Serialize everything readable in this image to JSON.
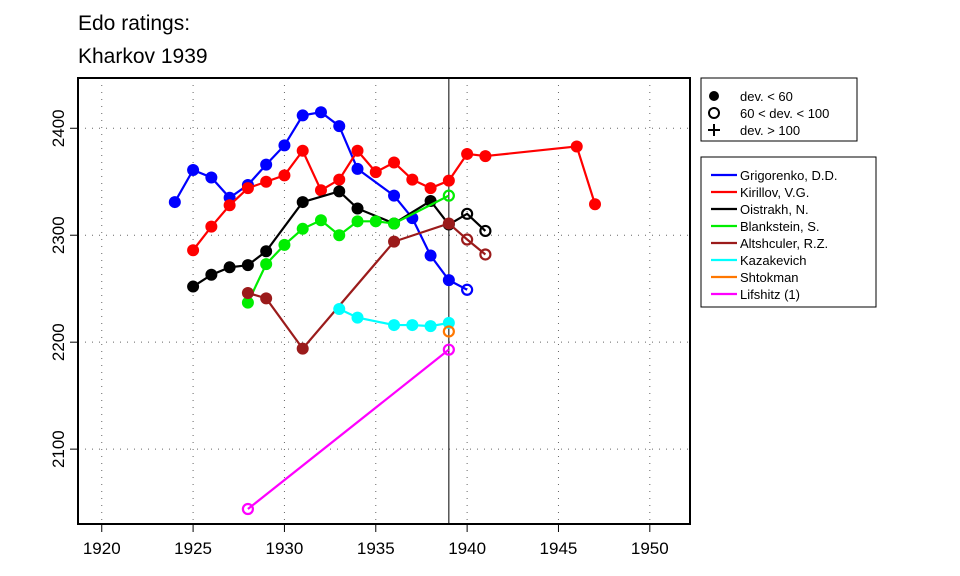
{
  "chart_data": {
    "type": "line",
    "title": [
      "Edo ratings:",
      "Kharkov 1939"
    ],
    "xlabel": "",
    "ylabel": "",
    "xlim": [
      1918.7,
      1952.2
    ],
    "ylim": [
      2030,
      2447
    ],
    "xticks": [
      1920,
      1925,
      1930,
      1935,
      1940,
      1945,
      1950
    ],
    "yticks": [
      2100,
      2200,
      2300,
      2400
    ],
    "grid": true,
    "reference_line_x": 1939,
    "marker_legend": [
      {
        "label": "dev. < 60",
        "marker": "filled"
      },
      {
        "label": "60 < dev. < 100",
        "marker": "open"
      },
      {
        "label": "dev. > 100",
        "marker": "plus"
      }
    ],
    "series": [
      {
        "name": "Grigorenko, D.D.",
        "color": "#0000ff",
        "points": [
          [
            1924,
            2331,
            0
          ],
          [
            1925,
            2361,
            0
          ],
          [
            1926,
            2354,
            0
          ],
          [
            1927,
            2335,
            0
          ],
          [
            1928,
            2347,
            0
          ],
          [
            1929,
            2366,
            0
          ],
          [
            1930,
            2384,
            0
          ],
          [
            1931,
            2412,
            0
          ],
          [
            1932,
            2415,
            0
          ],
          [
            1933,
            2402,
            0
          ],
          [
            1934,
            2362,
            0
          ],
          [
            1936,
            2337,
            0
          ],
          [
            1937,
            2316,
            0
          ],
          [
            1938,
            2281,
            0
          ],
          [
            1939,
            2258,
            0
          ],
          [
            1940,
            2249,
            1
          ]
        ]
      },
      {
        "name": "Kirillov, V.G.",
        "color": "#ff0000",
        "points": [
          [
            1925,
            2286,
            0
          ],
          [
            1926,
            2308,
            0
          ],
          [
            1927,
            2328,
            0
          ],
          [
            1928,
            2344,
            0
          ],
          [
            1929,
            2350,
            0
          ],
          [
            1930,
            2356,
            0
          ],
          [
            1931,
            2379,
            0
          ],
          [
            1932,
            2342,
            0
          ],
          [
            1933,
            2352,
            0
          ],
          [
            1934,
            2379,
            0
          ],
          [
            1935,
            2359,
            0
          ],
          [
            1936,
            2368,
            0
          ],
          [
            1937,
            2352,
            0
          ],
          [
            1938,
            2344,
            0
          ],
          [
            1939,
            2351,
            0
          ],
          [
            1940,
            2376,
            0
          ],
          [
            1941,
            2374,
            0
          ],
          [
            1946,
            2383,
            0
          ],
          [
            1947,
            2329,
            0
          ]
        ]
      },
      {
        "name": "Oistrakh, N.",
        "color": "#000000",
        "points": [
          [
            1925,
            2252,
            0
          ],
          [
            1926,
            2263,
            0
          ],
          [
            1927,
            2270,
            0
          ],
          [
            1928,
            2272,
            0
          ],
          [
            1929,
            2285,
            0
          ],
          [
            1931,
            2331,
            0
          ],
          [
            1933,
            2341,
            0
          ],
          [
            1934,
            2325,
            0
          ],
          [
            1936,
            2311,
            0
          ],
          [
            1938,
            2332,
            0
          ],
          [
            1939,
            2310,
            0
          ],
          [
            1940,
            2320,
            1
          ],
          [
            1941,
            2304,
            1
          ]
        ]
      },
      {
        "name": "Blankstein, S.",
        "color": "#00ee00",
        "points": [
          [
            1928,
            2237,
            0
          ],
          [
            1929,
            2273,
            0
          ],
          [
            1930,
            2291,
            0
          ],
          [
            1931,
            2306,
            0
          ],
          [
            1932,
            2314,
            0
          ],
          [
            1933,
            2300,
            0
          ],
          [
            1934,
            2313,
            0
          ],
          [
            1935,
            2313,
            0
          ],
          [
            1936,
            2311,
            0
          ],
          [
            1939,
            2337,
            1
          ]
        ]
      },
      {
        "name": "Altshculer, R.Z.",
        "color": "#9b1b1b",
        "points": [
          [
            1928,
            2246,
            0
          ],
          [
            1929,
            2241,
            0
          ],
          [
            1931,
            2194,
            0
          ],
          [
            1936,
            2294,
            0
          ],
          [
            1939,
            2311,
            0
          ],
          [
            1940,
            2296,
            1
          ],
          [
            1941,
            2282,
            1
          ]
        ]
      },
      {
        "name": "Kazakevich",
        "color": "#00ffff",
        "points": [
          [
            1933,
            2231,
            0
          ],
          [
            1934,
            2223,
            0
          ],
          [
            1936,
            2216,
            0
          ],
          [
            1937,
            2216,
            0
          ],
          [
            1938,
            2215,
            0
          ],
          [
            1939,
            2218,
            0
          ]
        ]
      },
      {
        "name": "Shtokman",
        "color": "#ff7700",
        "points": [
          [
            1939,
            2210,
            1
          ]
        ]
      },
      {
        "name": "Lifshitz (1)",
        "color": "#ff00ff",
        "points": [
          [
            1928,
            2044,
            1
          ],
          [
            1939,
            2193,
            1
          ]
        ]
      }
    ]
  }
}
